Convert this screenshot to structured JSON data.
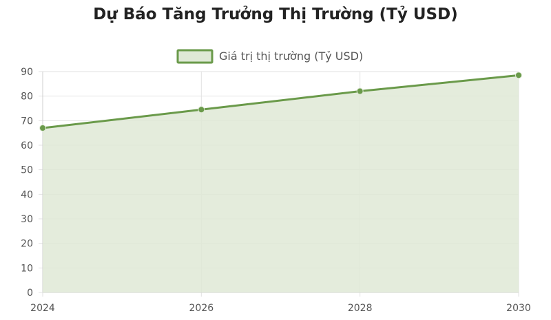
{
  "chart_data": {
    "type": "area",
    "title": "Dự Báo Tăng Trưởng Thị Trường (Tỷ USD)",
    "x": [
      "2024",
      "2026",
      "2028",
      "2030"
    ],
    "series": [
      {
        "name": "Giá trị thị trường (Tỷ USD)",
        "values": [
          67,
          74.5,
          82,
          88.5
        ]
      }
    ],
    "ylim": [
      0,
      90
    ],
    "yticks": [
      0,
      10,
      20,
      30,
      40,
      50,
      60,
      70,
      80,
      90
    ],
    "grid": true,
    "legend": "top-center",
    "colors": {
      "line": "#6a9a4a",
      "fill": "#dfe9d6",
      "grid": "#e2e2e2",
      "axis": "#cfcfcf"
    }
  }
}
